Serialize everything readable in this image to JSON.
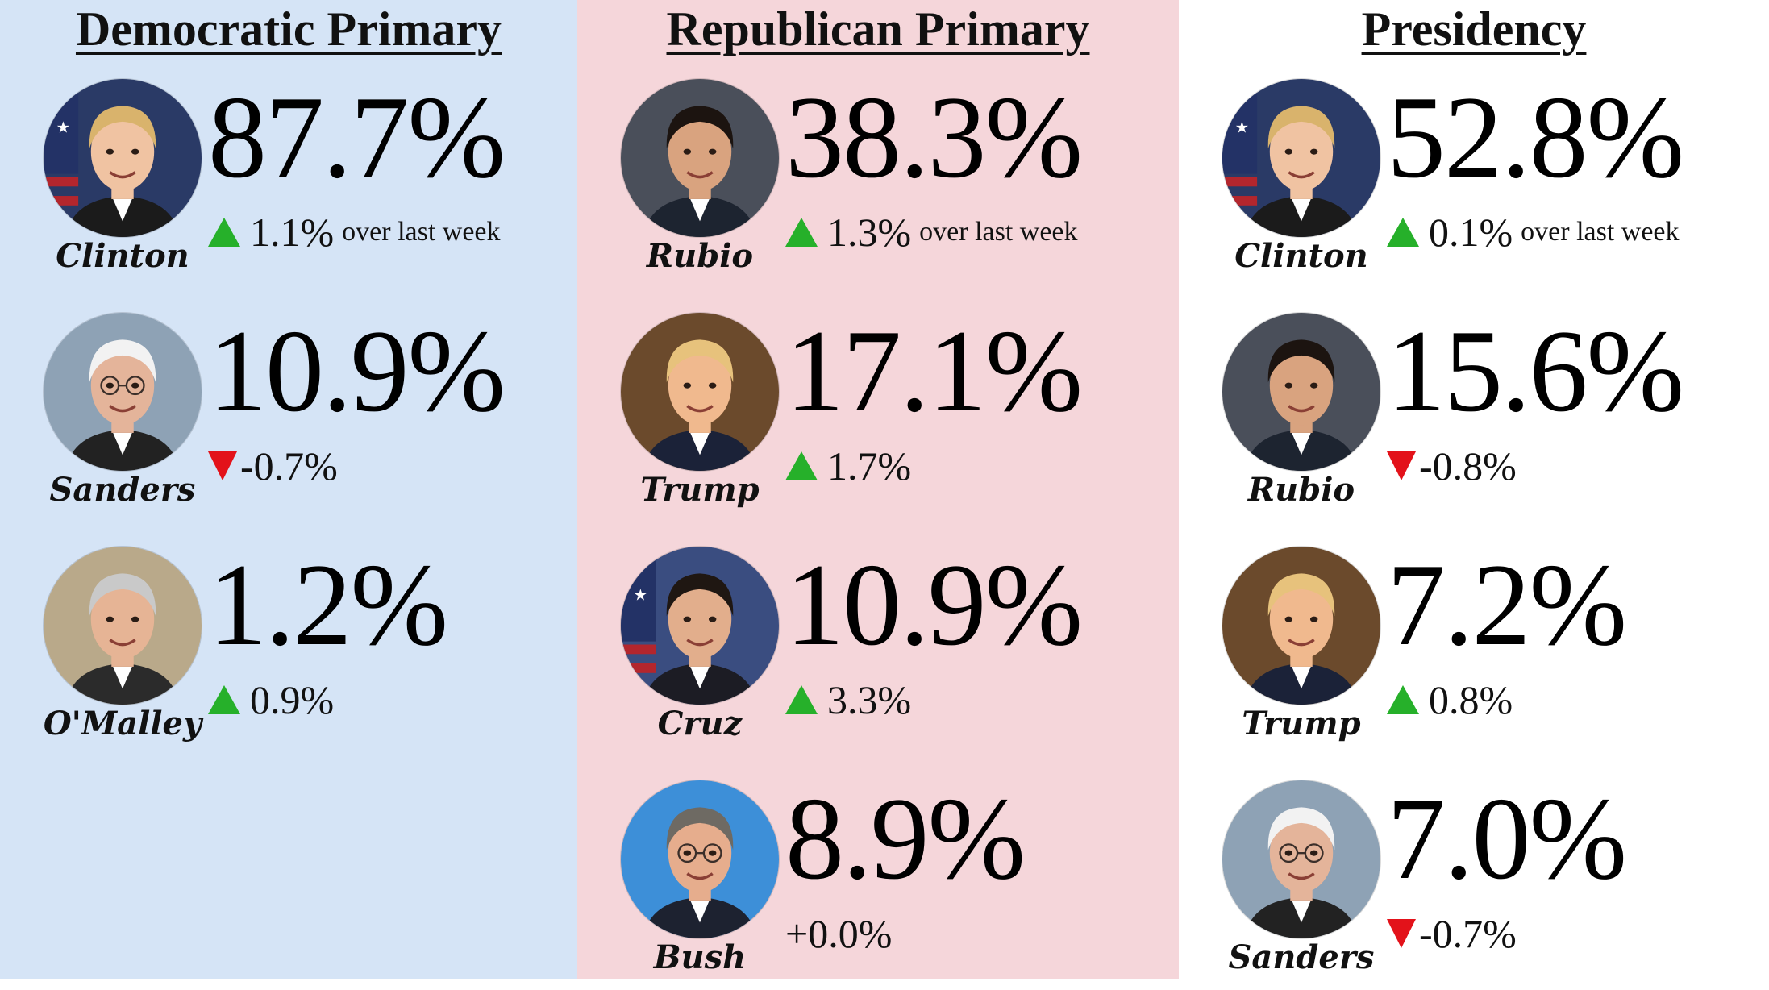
{
  "columns": [
    {
      "title": "Democratic Primary",
      "bg": "#d5e4f6",
      "entries": [
        {
          "name": "Clinton",
          "percent": "87.7%",
          "direction": "up",
          "change": "1.1%",
          "suffix": "over last week",
          "portrait": "clinton"
        },
        {
          "name": "Sanders",
          "percent": "10.9%",
          "direction": "down",
          "change": "-0.7%",
          "suffix": "",
          "portrait": "sanders"
        },
        {
          "name": "O'Malley",
          "percent": "1.2%",
          "direction": "up",
          "change": "0.9%",
          "suffix": "",
          "portrait": "omalley"
        }
      ]
    },
    {
      "title": "Republican Primary",
      "bg": "#f5d6da",
      "entries": [
        {
          "name": "Rubio",
          "percent": "38.3%",
          "direction": "up",
          "change": "1.3%",
          "suffix": "over last week",
          "portrait": "rubio"
        },
        {
          "name": "Trump",
          "percent": "17.1%",
          "direction": "up",
          "change": "1.7%",
          "suffix": "",
          "portrait": "trump"
        },
        {
          "name": "Cruz",
          "percent": "10.9%",
          "direction": "up",
          "change": "3.3%",
          "suffix": "",
          "portrait": "cruz"
        },
        {
          "name": "Bush",
          "percent": "8.9%",
          "direction": "none",
          "change": "+0.0%",
          "suffix": "",
          "portrait": "bush"
        }
      ]
    },
    {
      "title": "Presidency",
      "bg": "#ffffff",
      "entries": [
        {
          "name": "Clinton",
          "percent": "52.8%",
          "direction": "up",
          "change": "0.1%",
          "suffix": "over last week",
          "portrait": "clinton"
        },
        {
          "name": "Rubio",
          "percent": "15.6%",
          "direction": "down",
          "change": "-0.8%",
          "suffix": "",
          "portrait": "rubio"
        },
        {
          "name": "Trump",
          "percent": "7.2%",
          "direction": "up",
          "change": "0.8%",
          "suffix": "",
          "portrait": "trump"
        },
        {
          "name": "Sanders",
          "percent": "7.0%",
          "direction": "down",
          "change": "-0.7%",
          "suffix": "",
          "portrait": "sanders"
        }
      ]
    }
  ],
  "colors": {
    "up": "#26b02a",
    "down": "#e3121a"
  }
}
